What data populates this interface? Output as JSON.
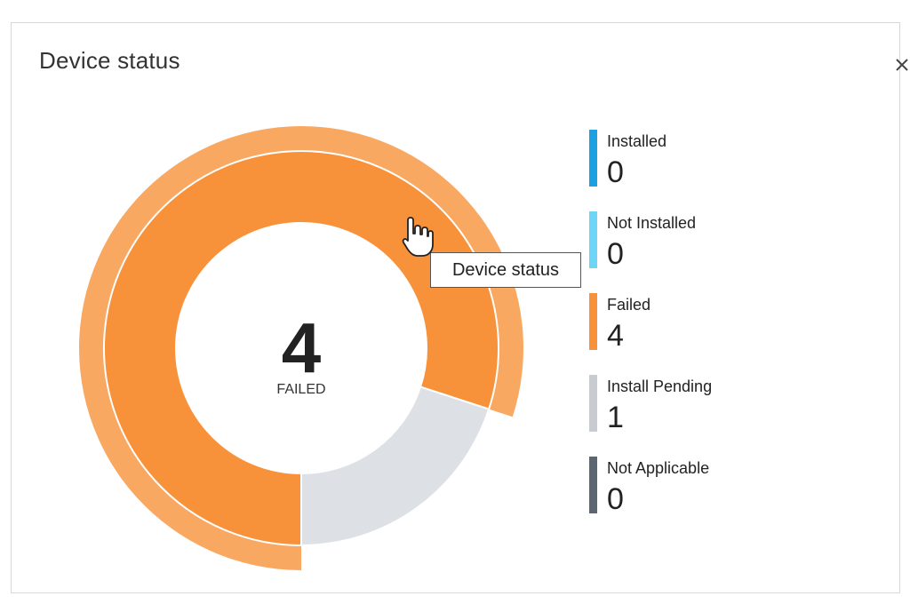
{
  "card": {
    "title": "Device status"
  },
  "tooltip": {
    "text": "Device status"
  },
  "center": {
    "value": "4",
    "label": "FAILED"
  },
  "legend": [
    {
      "label": "Installed",
      "value": "0",
      "color": "#1ba1e2"
    },
    {
      "label": "Not Installed",
      "value": "0",
      "color": "#6dd5f5"
    },
    {
      "label": "Failed",
      "value": "4",
      "color": "#f7923a"
    },
    {
      "label": "Install Pending",
      "value": "1",
      "color": "#c8cbd0"
    },
    {
      "label": "Not Applicable",
      "value": "0",
      "color": "#5c6670"
    }
  ],
  "icons": {
    "close": "close-icon",
    "cursor": "hand-pointer-icon"
  },
  "chart_data": {
    "type": "pie",
    "categories": [
      "Installed",
      "Not Installed",
      "Failed",
      "Install Pending",
      "Not Applicable"
    ],
    "values": [
      0,
      0,
      4,
      1,
      0
    ],
    "colors": [
      "#1ba1e2",
      "#6dd5f5",
      "#f7923a",
      "#dde0e4",
      "#5c6670"
    ],
    "highlighted": "Failed"
  }
}
